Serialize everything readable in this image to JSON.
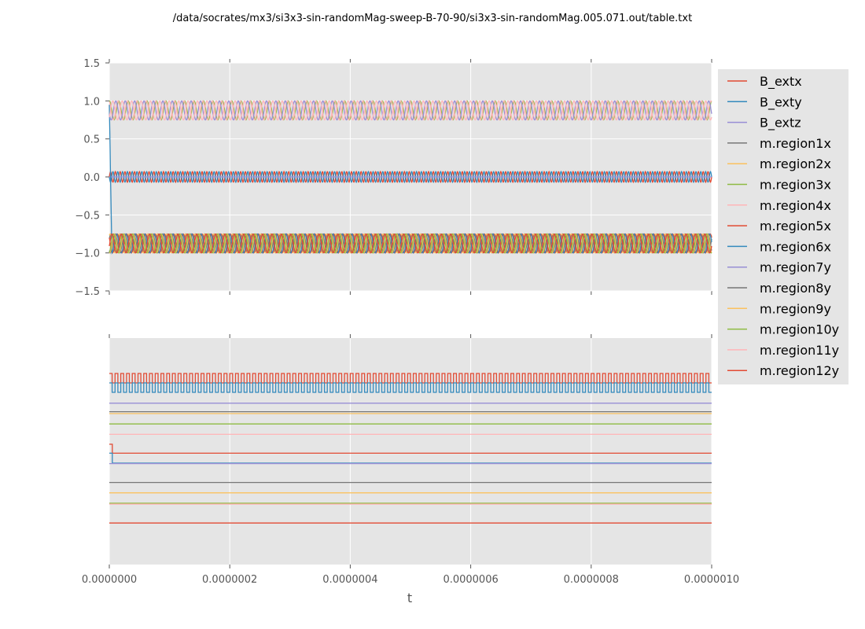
{
  "chart_data": [
    {
      "type": "line",
      "title": "/data/socrates/mx3/si3x3-sin-randomMag-sweep-B-70-90/si3x3-sin-randomMag.005.071.out/table.txt",
      "xlabel": "",
      "ylabel": "",
      "xlim": [
        0,
        1e-06
      ],
      "ylim": [
        -1.5,
        1.5
      ],
      "yticks": [
        "1.5",
        "1.0",
        "0.5",
        "0.0",
        "−0.5",
        "−1.0",
        "−1.5"
      ],
      "ytick_values": [
        1.5,
        1.0,
        0.5,
        0.0,
        -0.5,
        -1.0,
        -1.5
      ],
      "xtick_values": [
        0,
        2e-07,
        4e-07,
        6e-07,
        8e-07,
        1e-06
      ],
      "grid": true,
      "background": "#E5E5E5",
      "series": [
        {
          "name": "B_extx",
          "color": "#E24A33",
          "center": 0,
          "amplitude": 0.07,
          "cycles": 125,
          "phase": 0
        },
        {
          "name": "B_exty",
          "color": "#348ABD",
          "center": 0,
          "amplitude": 0.07,
          "cycles": 125,
          "phase": 3.14
        },
        {
          "name": "B_extz",
          "color": "#988ED5",
          "center": 0,
          "amplitude": 0,
          "cycles": 0,
          "phase": 0
        },
        {
          "name": "m.region1x",
          "color": "#777777",
          "center": -0.875,
          "amplitude": 0.125,
          "cycles": 64,
          "phase": 0.5
        },
        {
          "name": "m.region2x",
          "color": "#FBC15E",
          "center": -0.875,
          "amplitude": 0.125,
          "cycles": 64,
          "phase": 1.0
        },
        {
          "name": "m.region3x",
          "color": "#8EBA42",
          "center": 0.875,
          "amplitude": 0.125,
          "cycles": 64,
          "phase": 1.5
        },
        {
          "name": "m.region4x",
          "color": "#FFB5B8",
          "center": 0.875,
          "amplitude": 0.125,
          "cycles": 64,
          "phase": 2.0
        },
        {
          "name": "m.region5x",
          "color": "#E24A33",
          "center": -0.875,
          "amplitude": 0.125,
          "cycles": 64,
          "phase": 2.5
        },
        {
          "name": "m.region6x",
          "color": "#348ABD",
          "center": -0.875,
          "amplitude": 0.125,
          "cycles": 64,
          "phase": 3.0,
          "initial": 0.95
        },
        {
          "name": "m.region7y",
          "color": "#988ED5",
          "center": 0.875,
          "amplitude": 0.125,
          "cycles": 64,
          "phase": 3.5
        },
        {
          "name": "m.region8y",
          "color": "#777777",
          "center": -0.875,
          "amplitude": 0.125,
          "cycles": 64,
          "phase": 4.0
        },
        {
          "name": "m.region9y",
          "color": "#FBC15E",
          "center": -0.875,
          "amplitude": 0.125,
          "cycles": 64,
          "phase": 4.5
        },
        {
          "name": "m.region10y",
          "color": "#8EBA42",
          "center": -0.875,
          "amplitude": 0.125,
          "cycles": 64,
          "phase": 5.0
        },
        {
          "name": "m.region11y",
          "color": "#FFB5B8",
          "center": 0.875,
          "amplitude": 0.125,
          "cycles": 64,
          "phase": 5.5
        },
        {
          "name": "m.region12y",
          "color": "#E24A33",
          "center": -0.875,
          "amplitude": 0.125,
          "cycles": 64,
          "phase": 6.0
        }
      ]
    },
    {
      "type": "line",
      "xlabel": "t",
      "xlim": [
        0,
        1e-06
      ],
      "ylim": [
        0,
        24
      ],
      "xticks": [
        "0.0000000",
        "0.0000002",
        "0.0000004",
        "0.0000006",
        "0.0000008",
        "0.0000010"
      ],
      "xtick_values": [
        0,
        2e-07,
        4e-07,
        6e-07,
        8e-07,
        1e-06
      ],
      "yticks_shown": false,
      "grid": true,
      "background": "#E5E5E5",
      "legend_placement": "outside-right",
      "series": [
        {
          "name": "B_extx",
          "color": "#E24A33",
          "low": 19.25,
          "high": 20.25,
          "cycles": 105
        },
        {
          "name": "B_exty",
          "color": "#348ABD",
          "low": 18.25,
          "high": 19.25,
          "cycles": 105
        },
        {
          "name": "B_extz",
          "color": "#988ED5",
          "level": 17.1
        },
        {
          "name": "m.region1x",
          "color": "#777777",
          "level": 16.2
        },
        {
          "name": "m.region2x",
          "color": "#FBC15E",
          "level": 16.0
        },
        {
          "name": "m.region3x",
          "color": "#8EBA42",
          "level": 14.9
        },
        {
          "name": "m.region4x",
          "color": "#FFB5B8",
          "level": 13.8
        },
        {
          "name": "m.region5x",
          "color": "#E24A33",
          "level": 11.8,
          "initial": 12.75,
          "step_t": 5e-09
        },
        {
          "name": "m.region6x",
          "color": "#348ABD",
          "level": 10.75,
          "initial": 11.8,
          "step_t": 5e-09
        },
        {
          "name": "m.region7y",
          "color": "#988ED5",
          "level": 10.7
        },
        {
          "name": "m.region8y",
          "color": "#777777",
          "level": 8.7
        },
        {
          "name": "m.region9y",
          "color": "#FBC15E",
          "level": 7.6
        },
        {
          "name": "m.region10y",
          "color": "#8EBA42",
          "level": 6.5
        },
        {
          "name": "m.region11y",
          "color": "#FFB5B8",
          "level": 6.4
        },
        {
          "name": "m.region12y",
          "color": "#E24A33",
          "level": 4.4
        }
      ]
    }
  ]
}
